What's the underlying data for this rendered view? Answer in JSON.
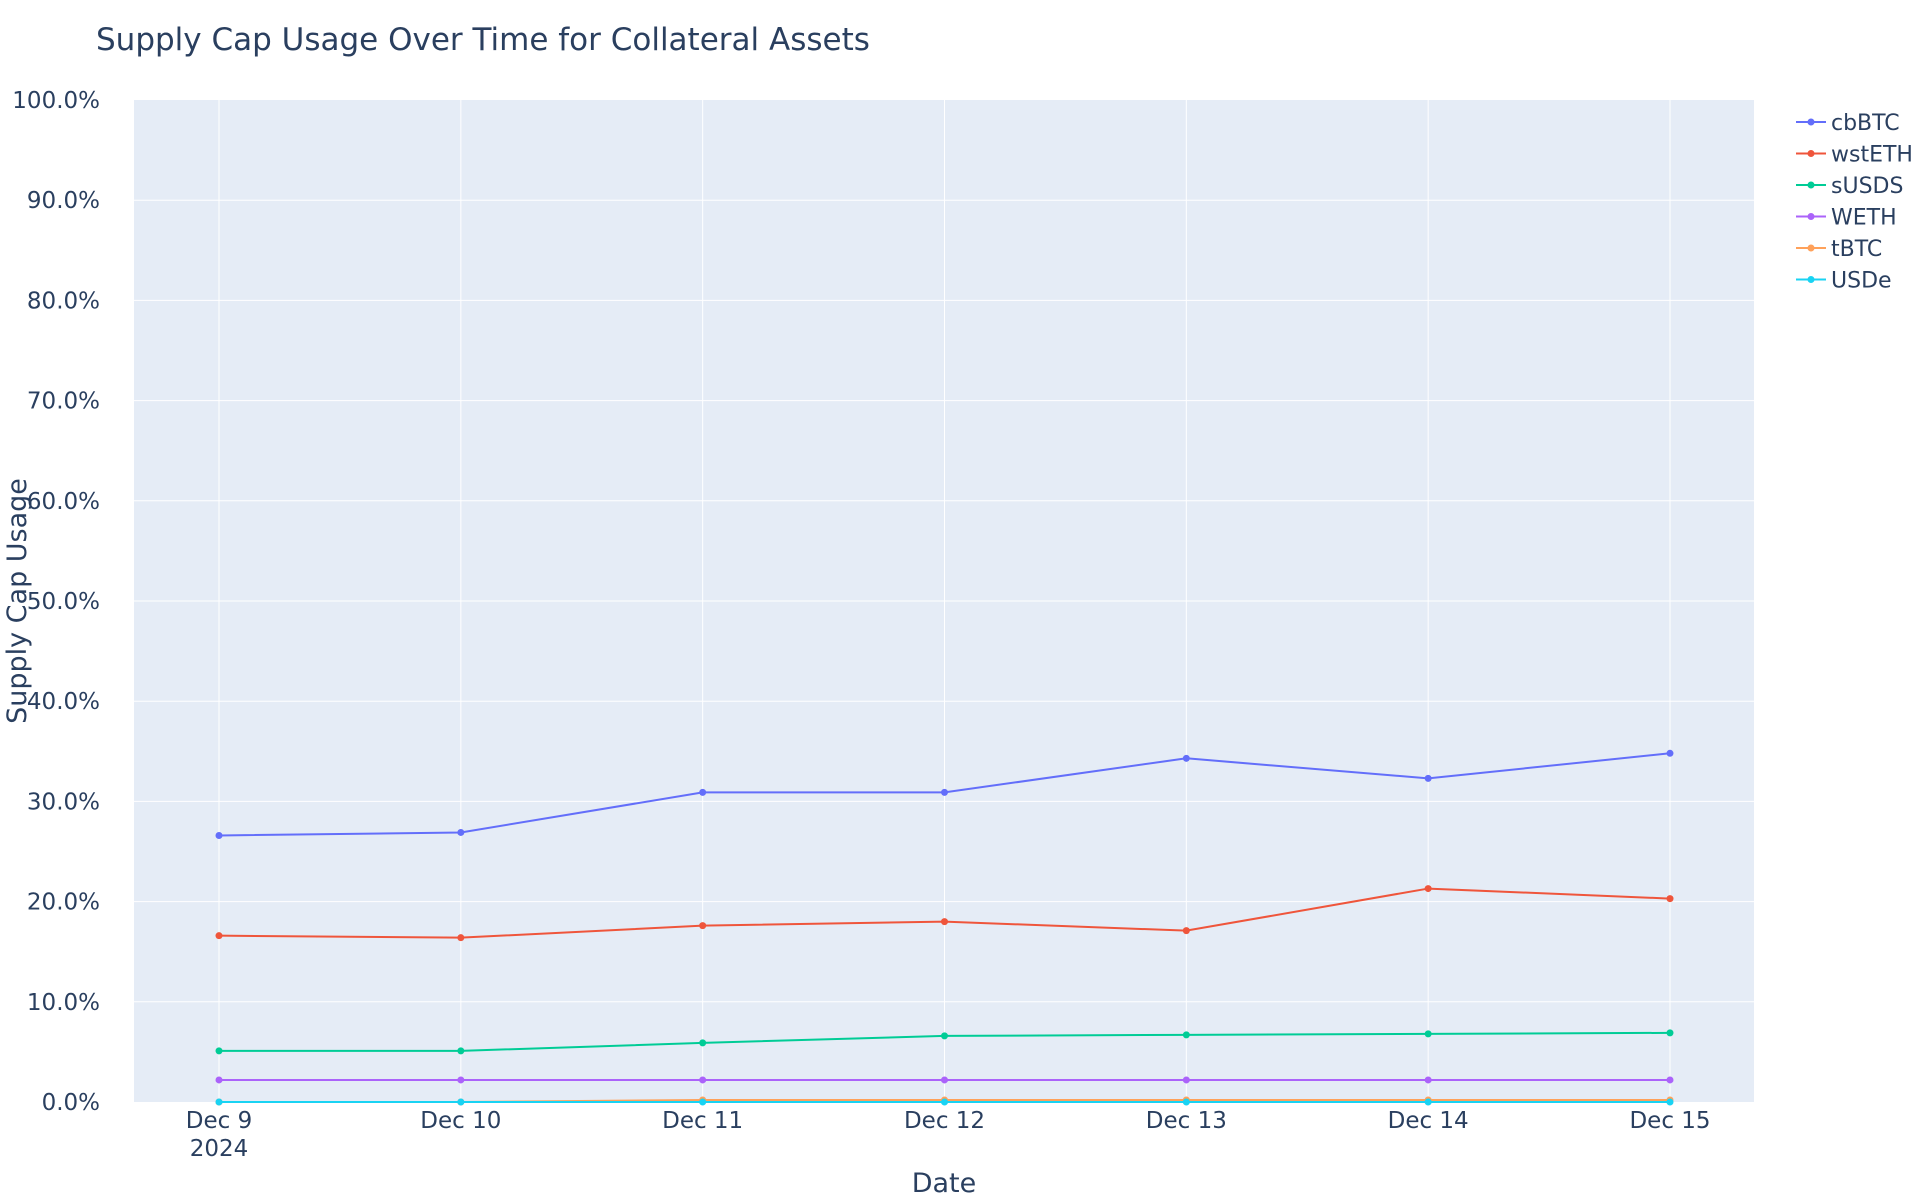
{
  "chart_data": {
    "type": "line",
    "title": "Supply Cap Usage Over Time for Collateral Assets",
    "xlabel": "Date",
    "ylabel": "Supply Cap Usage",
    "x": [
      "Dec 9",
      "Dec 10",
      "Dec 11",
      "Dec 12",
      "Dec 13",
      "Dec 14",
      "Dec 15"
    ],
    "x_year_label": "2024",
    "ylim": [
      0,
      100
    ],
    "y_ticks": [
      "0.0%",
      "10.0%",
      "20.0%",
      "30.0%",
      "40.0%",
      "50.0%",
      "60.0%",
      "70.0%",
      "80.0%",
      "90.0%",
      "100.0%"
    ],
    "grid": true,
    "legend_position": "top-right",
    "series": [
      {
        "name": "cbBTC",
        "color": "#636efa",
        "values": [
          26.6,
          26.9,
          30.9,
          30.9,
          34.3,
          32.3,
          34.8
        ]
      },
      {
        "name": "wstETH",
        "color": "#ef553b",
        "values": [
          16.6,
          16.4,
          17.6,
          18.0,
          17.1,
          21.3,
          20.3
        ]
      },
      {
        "name": "sUSDS",
        "color": "#00cc96",
        "values": [
          5.1,
          5.1,
          5.9,
          6.6,
          6.7,
          6.8,
          6.9
        ]
      },
      {
        "name": "WETH",
        "color": "#ab63fa",
        "values": [
          2.2,
          2.2,
          2.2,
          2.2,
          2.2,
          2.2,
          2.2
        ]
      },
      {
        "name": "tBTC",
        "color": "#ffa15a",
        "values": [
          0.0,
          0.0,
          0.2,
          0.2,
          0.2,
          0.2,
          0.2
        ]
      },
      {
        "name": "USDe",
        "color": "#19d3f3",
        "values": [
          0.0,
          0.0,
          0.0,
          0.0,
          0.0,
          0.0,
          0.0
        ]
      }
    ]
  }
}
